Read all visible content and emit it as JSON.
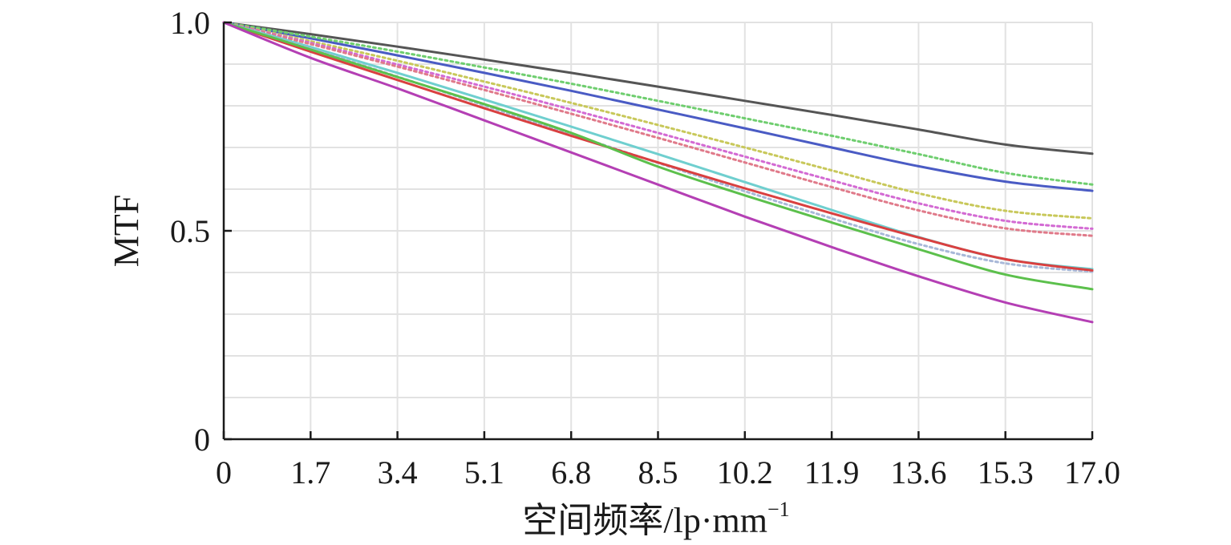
{
  "chart_data": {
    "type": "line",
    "title": "",
    "xlabel": "空间频率/lp·mm",
    "xlabel_superscript": "−1",
    "ylabel": "MTF",
    "xlim": [
      0,
      17.0
    ],
    "ylim": [
      0,
      1.0
    ],
    "x_ticks": [
      "0",
      "1.7",
      "3.4",
      "5.1",
      "6.8",
      "8.5",
      "10.2",
      "11.9",
      "13.6",
      "15.3",
      "17.0"
    ],
    "y_ticks": [
      "0",
      "0.5",
      "1.0"
    ],
    "grid": true,
    "x": [
      0,
      1.7,
      3.4,
      5.1,
      6.8,
      8.5,
      10.2,
      11.9,
      13.6,
      15.3,
      17.0
    ],
    "series": [
      {
        "color": "#555555",
        "style": "solid",
        "values": [
          1.0,
          0.972,
          0.942,
          0.911,
          0.879,
          0.846,
          0.812,
          0.778,
          0.743,
          0.707,
          0.685
        ]
      },
      {
        "color": "#4a5bc4",
        "style": "solid",
        "values": [
          1.0,
          0.962,
          0.921,
          0.879,
          0.836,
          0.791,
          0.746,
          0.7,
          0.655,
          0.618,
          0.596
        ]
      },
      {
        "color": "#6fce6f",
        "style": "dotted",
        "values": [
          1.0,
          0.966,
          0.93,
          0.892,
          0.853,
          0.812,
          0.77,
          0.728,
          0.684,
          0.639,
          0.611
        ]
      },
      {
        "color": "#c8c85a",
        "style": "dotted",
        "values": [
          1.0,
          0.955,
          0.908,
          0.858,
          0.807,
          0.754,
          0.7,
          0.645,
          0.59,
          0.548,
          0.53
        ]
      },
      {
        "color": "#d36ad3",
        "style": "dotted",
        "values": [
          1.0,
          0.951,
          0.899,
          0.846,
          0.791,
          0.735,
          0.678,
          0.621,
          0.566,
          0.524,
          0.505
        ]
      },
      {
        "color": "#e07a8a",
        "style": "dotted",
        "values": [
          1.0,
          0.948,
          0.894,
          0.838,
          0.781,
          0.723,
          0.664,
          0.605,
          0.549,
          0.506,
          0.488
        ]
      },
      {
        "color": "#6fcfcf",
        "style": "solid",
        "values": [
          1.0,
          0.941,
          0.879,
          0.815,
          0.75,
          0.684,
          0.617,
          0.55,
          0.485,
          0.432,
          0.408
        ]
      },
      {
        "color": "#a8b8d8",
        "style": "dotted",
        "values": [
          1.0,
          0.937,
          0.87,
          0.801,
          0.732,
          0.663,
          0.595,
          0.53,
          0.468,
          0.422,
          0.402
        ]
      },
      {
        "color": "#d94040",
        "style": "solid",
        "values": [
          1.0,
          0.93,
          0.862,
          0.794,
          0.728,
          0.664,
          0.602,
          0.542,
          0.484,
          0.432,
          0.405
        ]
      },
      {
        "color": "#5cc04c",
        "style": "solid",
        "values": [
          1.0,
          0.935,
          0.869,
          0.804,
          0.735,
          0.654,
          0.585,
          0.52,
          0.456,
          0.395,
          0.36
        ]
      },
      {
        "color": "#b43fb4",
        "style": "solid",
        "values": [
          1.0,
          0.915,
          0.842,
          0.765,
          0.688,
          0.611,
          0.534,
          0.461,
          0.391,
          0.328,
          0.281
        ]
      }
    ]
  }
}
